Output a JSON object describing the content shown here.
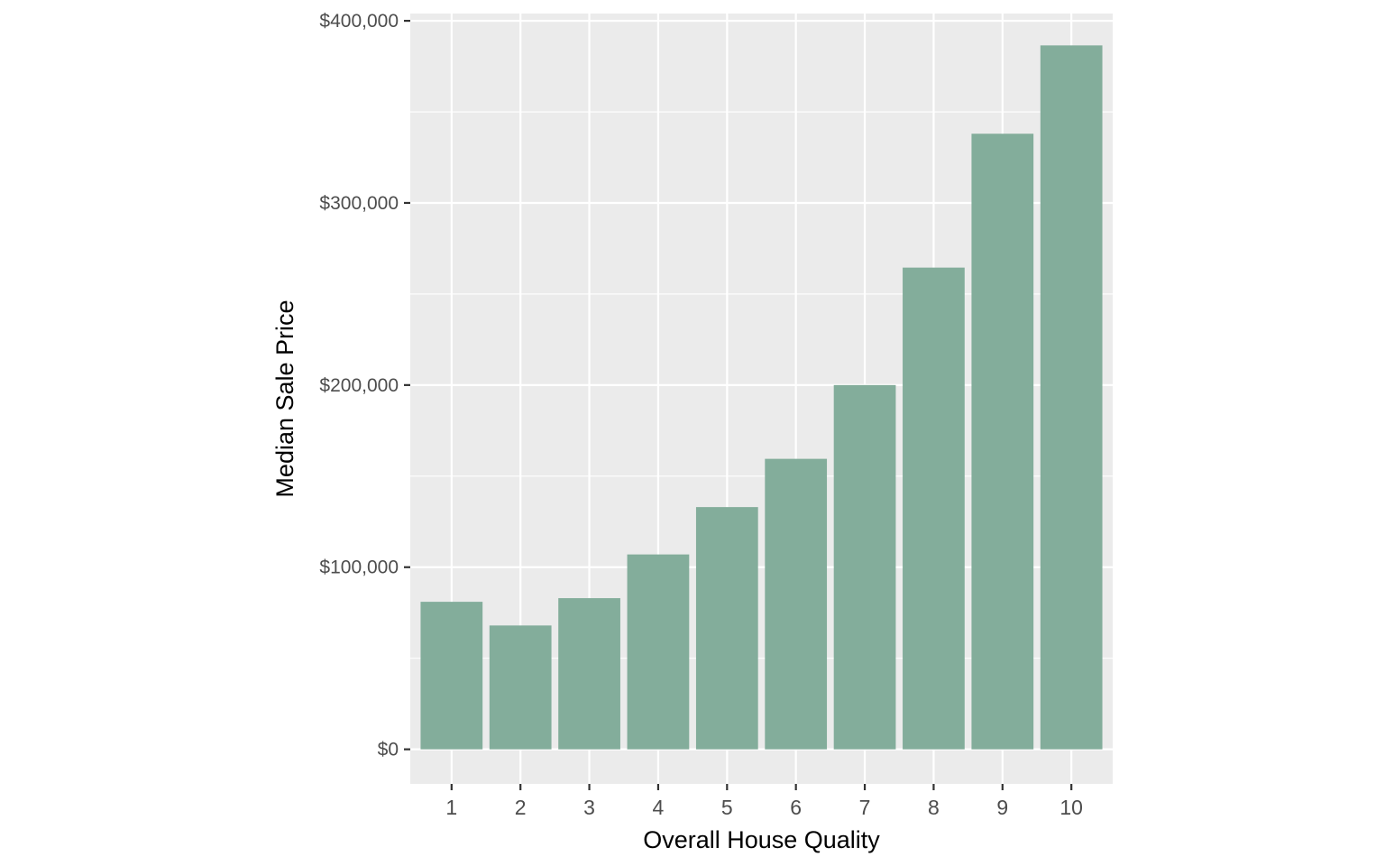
{
  "chart_data": {
    "type": "bar",
    "title": "",
    "xlabel": "Overall House Quality",
    "ylabel": "Median Sale Price",
    "categories": [
      "1",
      "2",
      "3",
      "4",
      "5",
      "6",
      "7",
      "8",
      "9",
      "10"
    ],
    "values": [
      81000,
      68000,
      83000,
      107000,
      133000,
      159500,
      200000,
      264500,
      338000,
      386500
    ],
    "ylim": [
      -19000,
      404000
    ],
    "y_ticks": [
      0,
      100000,
      200000,
      300000,
      400000
    ],
    "y_tick_labels": [
      "$0",
      "$100,000",
      "$200,000",
      "$300,000",
      "$400,000"
    ],
    "grid": true,
    "legend": "none",
    "colors": {
      "bar": "#83ad9b",
      "panel": "#ebebeb",
      "grid": "#ffffff",
      "tick_label": "#4d4d4d",
      "axis_title": "#000000"
    }
  }
}
